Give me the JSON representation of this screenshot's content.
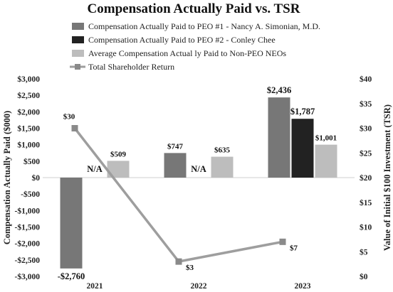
{
  "chart_data": {
    "type": "bar",
    "title": "Compensation Actually Paid vs. TSR",
    "categories": [
      "2021",
      "2022",
      "2023"
    ],
    "ylabel": "Compensation Actually Paid ($000)",
    "y2label": "Value of Initial $100 Investment (TSR)",
    "ylim": [
      -3000,
      3000
    ],
    "y2lim": [
      0,
      40
    ],
    "yticks": [
      "$3,000",
      "$2,500",
      "$2,000",
      "$1,500",
      "$1,000",
      "$500",
      "$0",
      "-$500",
      "-$1,000",
      "-$1,500",
      "-$2,000",
      "-$2,500",
      "-$3,000"
    ],
    "y2ticks": [
      "$40",
      "$35",
      "$30",
      "$25",
      "$20",
      "$15",
      "$10",
      "$5",
      "$0"
    ],
    "na_label": "N/A",
    "legend_position": "top-left",
    "grid": false,
    "series": [
      {
        "name": "Compensation Actually Paid to PEO #1 - Nancy A. Simonian, M.D.",
        "kind": "bar",
        "color": "#777777",
        "values": [
          -2760,
          747,
          2436
        ],
        "labels": [
          "-$2,760",
          "$747",
          "$2,436"
        ]
      },
      {
        "name": "Compensation Actually Paid  to PEO #2 - Conley Chee",
        "kind": "bar",
        "color": "#222222",
        "values": [
          null,
          null,
          1787
        ],
        "labels": [
          "N/A",
          "N/A",
          "$1,787"
        ]
      },
      {
        "name": "Average Compensation Actual ly Paid to Non-PEO NEOs",
        "kind": "bar",
        "color": "#bdbdbd",
        "values": [
          509,
          635,
          1001
        ],
        "labels": [
          "$509",
          "$635",
          "$1,001"
        ]
      },
      {
        "name": "Total Shareholder Return",
        "kind": "line",
        "axis": "y2",
        "color": "#9e9e9e",
        "values": [
          30,
          3,
          7
        ],
        "labels": [
          "$30",
          "$3",
          "$7"
        ]
      }
    ]
  }
}
